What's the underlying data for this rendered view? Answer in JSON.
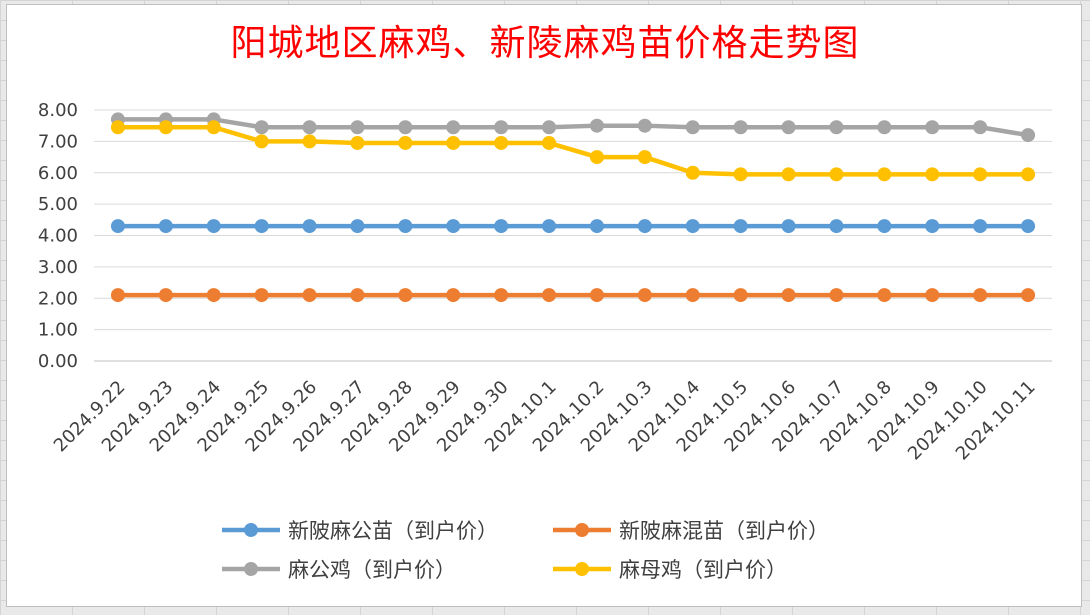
{
  "chart_data": {
    "type": "line",
    "title": "阳城地区麻鸡、新陵麻鸡苗价格走势图",
    "xlabel": "",
    "ylabel": "",
    "ylim": [
      0,
      8
    ],
    "yticks": [
      "0.00",
      "1.00",
      "2.00",
      "3.00",
      "4.00",
      "5.00",
      "6.00",
      "7.00",
      "8.00"
    ],
    "grid": true,
    "legend_position": "bottom",
    "categories": [
      "2024.9.22",
      "2024.9.23",
      "2024.9.24",
      "2024.9.25",
      "2024.9.26",
      "2024.9.27",
      "2024.9.28",
      "2024.9.29",
      "2024.9.30",
      "2024.10.1",
      "2024.10.2",
      "2024.10.3",
      "2024.10.4",
      "2024.10.5",
      "2024.10.6",
      "2024.10.7",
      "2024.10.8",
      "2024.10.9",
      "2024.10.10",
      "2024.10.11"
    ],
    "series": [
      {
        "name": "新陂麻公苗（到户价）",
        "color": "#5b9bd5",
        "values": [
          4.3,
          4.3,
          4.3,
          4.3,
          4.3,
          4.3,
          4.3,
          4.3,
          4.3,
          4.3,
          4.3,
          4.3,
          4.3,
          4.3,
          4.3,
          4.3,
          4.3,
          4.3,
          4.3,
          4.3
        ]
      },
      {
        "name": "新陂麻混苗（到户价）",
        "color": "#ed7d31",
        "values": [
          2.1,
          2.1,
          2.1,
          2.1,
          2.1,
          2.1,
          2.1,
          2.1,
          2.1,
          2.1,
          2.1,
          2.1,
          2.1,
          2.1,
          2.1,
          2.1,
          2.1,
          2.1,
          2.1,
          2.1
        ]
      },
      {
        "name": "麻公鸡（到户价）",
        "color": "#a5a5a5",
        "values": [
          7.7,
          7.7,
          7.7,
          7.45,
          7.45,
          7.45,
          7.45,
          7.45,
          7.45,
          7.45,
          7.5,
          7.5,
          7.45,
          7.45,
          7.45,
          7.45,
          7.45,
          7.45,
          7.45,
          7.2
        ]
      },
      {
        "name": "麻母鸡（到户价）",
        "color": "#ffc000",
        "values": [
          7.45,
          7.45,
          7.45,
          7.0,
          7.0,
          6.95,
          6.95,
          6.95,
          6.95,
          6.95,
          6.5,
          6.5,
          6.0,
          5.95,
          5.95,
          5.95,
          5.95,
          5.95,
          5.95,
          5.95
        ]
      }
    ]
  }
}
